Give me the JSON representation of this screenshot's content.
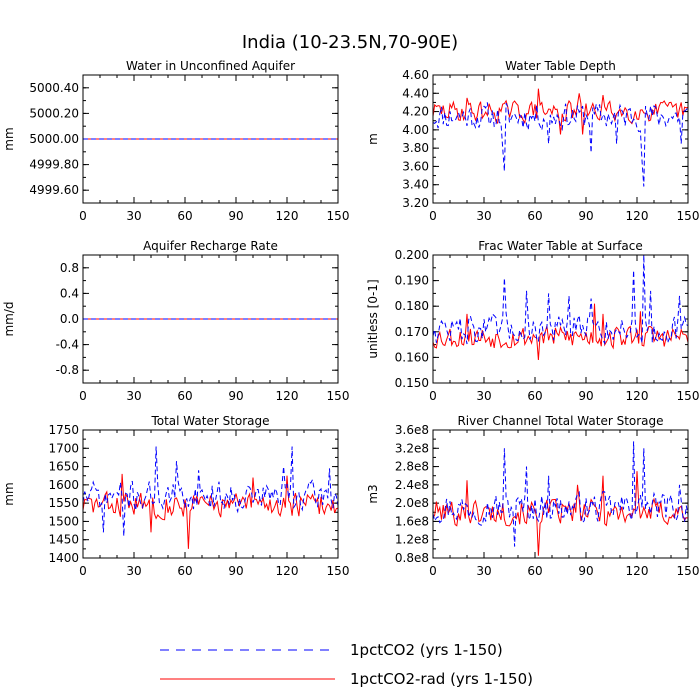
{
  "title": "India (10-23.5N,70-90E)",
  "legend": {
    "position": "bottom-center",
    "items": [
      {
        "label": "1pctCO2 (yrs 1-150)",
        "color": "#0000ff",
        "style": "dashed"
      },
      {
        "label": "1pctCO2-rad (yrs 1-150)",
        "color": "#ff0000",
        "style": "solid"
      }
    ]
  },
  "chart_data": [
    {
      "type": "line",
      "title": "Water in Unconfined Aquifer",
      "ylabel": "mm",
      "xlim": [
        0,
        150
      ],
      "ylim": [
        4999.5,
        5000.5
      ],
      "xticks": [
        0,
        30,
        60,
        90,
        120,
        150
      ],
      "yticks": [
        4999.6,
        4999.8,
        5000.0,
        5000.2,
        5000.4
      ],
      "ytick_labels": [
        "4999.60",
        "4999.80",
        "5000.00",
        "5000.20",
        "5000.40"
      ],
      "series": [
        {
          "name": "1pctCO2 (yrs 1-150)",
          "constant": 5000.0
        },
        {
          "name": "1pctCO2-rad (yrs 1-150)",
          "constant": 5000.0
        }
      ]
    },
    {
      "type": "line",
      "title": "Water Table Depth",
      "ylabel": "m",
      "xlim": [
        0,
        150
      ],
      "ylim": [
        3.2,
        4.6
      ],
      "xticks": [
        0,
        30,
        60,
        90,
        120,
        150
      ],
      "yticks": [
        3.2,
        3.4,
        3.6,
        3.8,
        4.0,
        4.2,
        4.4,
        4.6
      ],
      "ytick_labels": [
        "3.20",
        "3.40",
        "3.60",
        "3.80",
        "4.00",
        "4.20",
        "4.40",
        "4.60"
      ],
      "series": [
        {
          "name": "1pctCO2 (yrs 1-150)",
          "mean": 4.15,
          "amp": 0.13,
          "seed": 11,
          "events": [
            [
              42,
              3.55
            ],
            [
              41,
              3.8
            ],
            [
              68,
              3.85
            ],
            [
              93,
              3.75
            ],
            [
              108,
              3.85
            ],
            [
              124,
              3.38
            ],
            [
              123,
              3.65
            ],
            [
              146,
              3.85
            ]
          ]
        },
        {
          "name": "1pctCO2-rad (yrs 1-150)",
          "mean": 4.2,
          "amp": 0.1,
          "seed": 29,
          "events": [
            [
              62,
              4.45
            ],
            [
              20,
              4.35
            ],
            [
              86,
              4.4
            ],
            [
              88,
              3.95
            ],
            [
              100,
              4.38
            ],
            [
              75,
              3.95
            ]
          ]
        }
      ]
    },
    {
      "type": "line",
      "title": "Aquifer Recharge Rate",
      "ylabel": "mm/d",
      "xlim": [
        0,
        150
      ],
      "ylim": [
        -1.0,
        1.0
      ],
      "xticks": [
        0,
        30,
        60,
        90,
        120,
        150
      ],
      "yticks": [
        -0.8,
        -0.4,
        0.0,
        0.4,
        0.8
      ],
      "ytick_labels": [
        "-0.8",
        "-0.4",
        "0.0",
        "0.4",
        "0.8"
      ],
      "series": [
        {
          "name": "1pctCO2 (yrs 1-150)",
          "constant": 0.0
        },
        {
          "name": "1pctCO2-rad (yrs 1-150)",
          "constant": 0.0
        }
      ]
    },
    {
      "type": "line",
      "title": "Frac Water Table at Surface",
      "ylabel": "unitless [0-1]",
      "xlim": [
        0,
        150
      ],
      "ylim": [
        0.15,
        0.2
      ],
      "xticks": [
        0,
        30,
        60,
        90,
        120,
        150
      ],
      "yticks": [
        0.15,
        0.16,
        0.17,
        0.18,
        0.19,
        0.2
      ],
      "ytick_labels": [
        "0.150",
        "0.160",
        "0.170",
        "0.180",
        "0.190",
        "0.200"
      ],
      "series": [
        {
          "name": "1pctCO2 (yrs 1-150)",
          "mean": 0.171,
          "amp": 0.005,
          "seed": 47,
          "events": [
            [
              42,
              0.191
            ],
            [
              55,
              0.186
            ],
            [
              68,
              0.185
            ],
            [
              80,
              0.184
            ],
            [
              93,
              0.183
            ],
            [
              118,
              0.194
            ],
            [
              124,
              0.2
            ],
            [
              128,
              0.186
            ],
            [
              145,
              0.184
            ]
          ]
        },
        {
          "name": "1pctCO2-rad (yrs 1-150)",
          "mean": 0.168,
          "amp": 0.004,
          "seed": 53,
          "events": [
            [
              20,
              0.177
            ],
            [
              95,
              0.181
            ],
            [
              100,
              0.177
            ],
            [
              122,
              0.178
            ],
            [
              62,
              0.159
            ]
          ]
        }
      ]
    },
    {
      "type": "line",
      "title": "Total Water Storage",
      "ylabel": "mm",
      "xlim": [
        0,
        150
      ],
      "ylim": [
        1400,
        1750
      ],
      "xticks": [
        0,
        30,
        60,
        90,
        120,
        150
      ],
      "yticks": [
        1400,
        1450,
        1500,
        1550,
        1600,
        1650,
        1700,
        1750
      ],
      "ytick_labels": [
        "1400",
        "1450",
        "1500",
        "1550",
        "1600",
        "1650",
        "1700",
        "1750"
      ],
      "series": [
        {
          "name": "1pctCO2 (yrs 1-150)",
          "mean": 1570,
          "amp": 35,
          "seed": 71,
          "events": [
            [
              43,
              1705
            ],
            [
              55,
              1665
            ],
            [
              68,
              1640
            ],
            [
              118,
              1650
            ],
            [
              123,
              1705
            ],
            [
              12,
              1470
            ],
            [
              24,
              1460
            ],
            [
              145,
              1645
            ]
          ]
        },
        {
          "name": "1pctCO2-rad (yrs 1-150)",
          "mean": 1545,
          "amp": 30,
          "seed": 83,
          "events": [
            [
              23,
              1630
            ],
            [
              62,
              1425
            ],
            [
              100,
              1620
            ],
            [
              40,
              1470
            ],
            [
              120,
              1625
            ]
          ]
        }
      ]
    },
    {
      "type": "line",
      "title": "River Channel Total Water Storage",
      "ylabel": "m3",
      "xlim": [
        0,
        150
      ],
      "ylim": [
        80000000.0,
        360000000.0
      ],
      "xticks": [
        0,
        30,
        60,
        90,
        120,
        150
      ],
      "yticks": [
        80000000.0,
        120000000.0,
        160000000.0,
        200000000.0,
        240000000.0,
        280000000.0,
        320000000.0,
        360000000.0
      ],
      "ytick_labels": [
        "0.8e8",
        "1.2e8",
        "1.6e8",
        "2.0e8",
        "2.4e8",
        "2.8e8",
        "3.2e8",
        "3.6e8"
      ],
      "series": [
        {
          "name": "1pctCO2 (yrs 1-150)",
          "mean": 190000000.0,
          "amp": 28000000.0,
          "seed": 97,
          "events": [
            [
              42,
              320000000.0
            ],
            [
              55,
              280000000.0
            ],
            [
              68,
              260000000.0
            ],
            [
              118,
              335000000.0
            ],
            [
              124,
              320000000.0
            ],
            [
              48,
              105000000.0
            ],
            [
              145,
              240000000.0
            ]
          ]
        },
        {
          "name": "1pctCO2-rad (yrs 1-150)",
          "mean": 180000000.0,
          "amp": 25000000.0,
          "seed": 101,
          "events": [
            [
              62,
              85000000.0
            ],
            [
              20,
              250000000.0
            ],
            [
              100,
              260000000.0
            ],
            [
              120,
              270000000.0
            ],
            [
              85,
              240000000.0
            ]
          ]
        }
      ]
    }
  ]
}
